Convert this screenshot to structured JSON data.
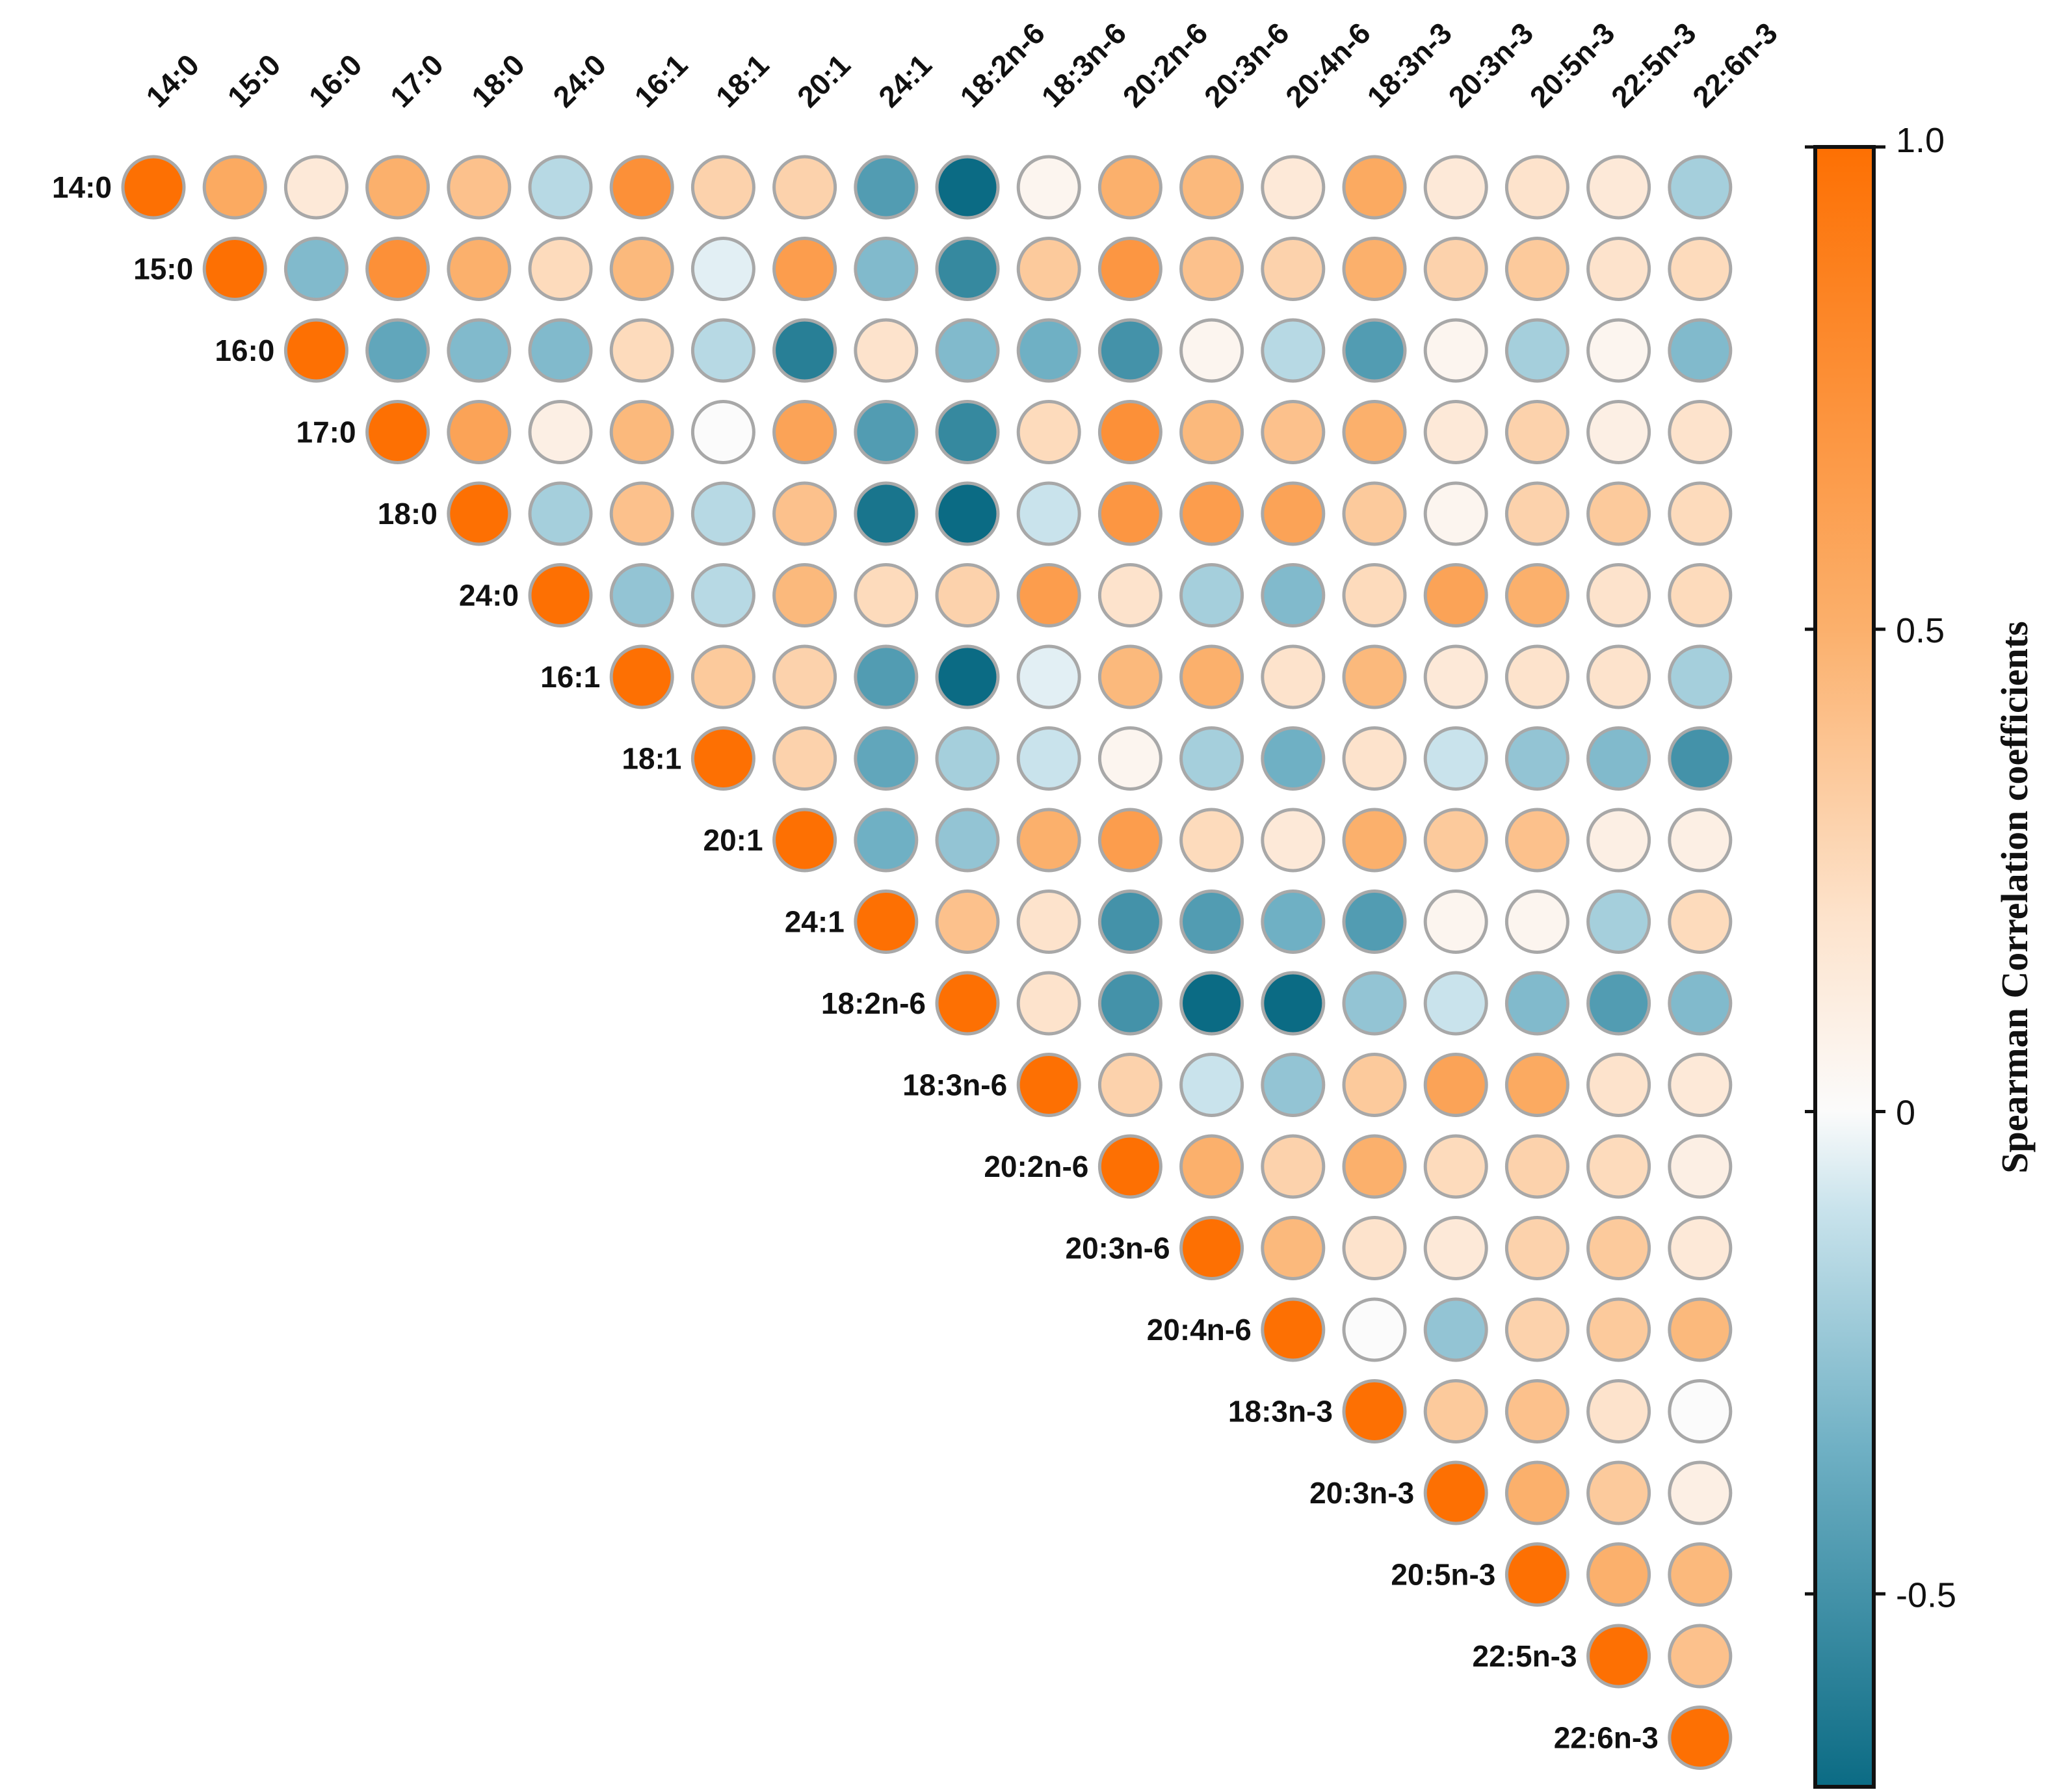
{
  "chart_data": {
    "type": "heatmap",
    "subtype": "upper-triangle correlation circles",
    "labels": [
      "14:0",
      "15:0",
      "16:0",
      "17:0",
      "18:0",
      "24:0",
      "16:1",
      "18:1",
      "20:1",
      "24:1",
      "18:2n-6",
      "18:3n-6",
      "20:2n-6",
      "20:3n-6",
      "20:4n-6",
      "18:3n-3",
      "20:3n-3",
      "20:5n-3",
      "22:5n-3",
      "22:6n-3"
    ],
    "matrix": [
      [
        1.0,
        0.55,
        0.15,
        0.5,
        0.4,
        -0.15,
        0.75,
        0.3,
        0.3,
        -0.45,
        -0.75,
        0.05,
        0.5,
        0.45,
        0.15,
        0.55,
        0.15,
        0.2,
        0.15,
        -0.2
      ],
      [
        null,
        1.0,
        -0.3,
        0.75,
        0.5,
        0.25,
        0.45,
        -0.05,
        0.65,
        -0.3,
        -0.55,
        0.35,
        0.7,
        0.4,
        0.3,
        0.5,
        0.3,
        0.35,
        0.2,
        0.25
      ],
      [
        null,
        null,
        1.0,
        -0.4,
        -0.3,
        -0.3,
        0.25,
        -0.15,
        -0.6,
        0.2,
        -0.3,
        -0.35,
        -0.5,
        0.05,
        -0.15,
        -0.45,
        0.05,
        -0.2,
        0.05,
        -0.3
      ],
      [
        null,
        null,
        null,
        1.0,
        0.6,
        0.1,
        0.45,
        0.0,
        0.6,
        -0.45,
        -0.55,
        0.25,
        0.75,
        0.45,
        0.4,
        0.5,
        0.15,
        0.3,
        0.1,
        0.2
      ],
      [
        null,
        null,
        null,
        null,
        1.0,
        -0.2,
        0.4,
        -0.15,
        0.4,
        -0.65,
        -0.75,
        -0.1,
        0.7,
        0.65,
        0.6,
        0.35,
        0.05,
        0.3,
        0.35,
        0.25
      ],
      [
        null,
        null,
        null,
        null,
        null,
        1.0,
        -0.25,
        -0.15,
        0.45,
        0.25,
        0.3,
        0.65,
        0.2,
        -0.2,
        -0.3,
        0.25,
        0.6,
        0.5,
        0.2,
        0.25
      ],
      [
        null,
        null,
        null,
        null,
        null,
        null,
        1.0,
        0.35,
        0.3,
        -0.45,
        -0.8,
        -0.05,
        0.45,
        0.5,
        0.2,
        0.45,
        0.15,
        0.2,
        0.2,
        -0.2
      ],
      [
        null,
        null,
        null,
        null,
        null,
        null,
        null,
        1.0,
        0.3,
        -0.4,
        -0.2,
        -0.1,
        0.05,
        -0.2,
        -0.35,
        0.2,
        -0.1,
        -0.25,
        -0.3,
        -0.5
      ],
      [
        null,
        null,
        null,
        null,
        null,
        null,
        null,
        null,
        1.0,
        -0.35,
        -0.25,
        0.5,
        0.65,
        0.25,
        0.15,
        0.5,
        0.35,
        0.4,
        0.1,
        0.1
      ],
      [
        null,
        null,
        null,
        null,
        null,
        null,
        null,
        null,
        null,
        1.0,
        0.4,
        0.2,
        -0.5,
        -0.45,
        -0.35,
        -0.45,
        0.05,
        0.05,
        -0.2,
        0.25
      ],
      [
        null,
        null,
        null,
        null,
        null,
        null,
        null,
        null,
        null,
        null,
        1.0,
        0.2,
        -0.5,
        -0.8,
        -0.7,
        -0.25,
        -0.1,
        -0.3,
        -0.45,
        -0.3
      ],
      [
        null,
        null,
        null,
        null,
        null,
        null,
        null,
        null,
        null,
        null,
        null,
        1.0,
        0.3,
        -0.1,
        -0.25,
        0.35,
        0.6,
        0.55,
        0.2,
        0.15
      ],
      [
        null,
        null,
        null,
        null,
        null,
        null,
        null,
        null,
        null,
        null,
        null,
        null,
        1.0,
        0.5,
        0.3,
        0.5,
        0.25,
        0.3,
        0.25,
        0.1
      ],
      [
        null,
        null,
        null,
        null,
        null,
        null,
        null,
        null,
        null,
        null,
        null,
        null,
        null,
        1.0,
        0.45,
        0.2,
        0.15,
        0.3,
        0.35,
        0.15
      ],
      [
        null,
        null,
        null,
        null,
        null,
        null,
        null,
        null,
        null,
        null,
        null,
        null,
        null,
        null,
        1.0,
        0.0,
        -0.25,
        0.3,
        0.35,
        0.45
      ],
      [
        null,
        null,
        null,
        null,
        null,
        null,
        null,
        null,
        null,
        null,
        null,
        null,
        null,
        null,
        null,
        1.0,
        0.35,
        0.4,
        0.2,
        0.0
      ],
      [
        null,
        null,
        null,
        null,
        null,
        null,
        null,
        null,
        null,
        null,
        null,
        null,
        null,
        null,
        null,
        null,
        1.0,
        0.5,
        0.35,
        0.1
      ],
      [
        null,
        null,
        null,
        null,
        null,
        null,
        null,
        null,
        null,
        null,
        null,
        null,
        null,
        null,
        null,
        null,
        null,
        1.0,
        0.5,
        0.45
      ],
      [
        null,
        null,
        null,
        null,
        null,
        null,
        null,
        null,
        null,
        null,
        null,
        null,
        null,
        null,
        null,
        null,
        null,
        null,
        1.0,
        0.4
      ],
      [
        null,
        null,
        null,
        null,
        null,
        null,
        null,
        null,
        null,
        null,
        null,
        null,
        null,
        null,
        null,
        null,
        null,
        null,
        null,
        1.0
      ]
    ],
    "colorbar": {
      "title": "Spearman Correlation coefficients",
      "range": [
        -0.7,
        1.0
      ],
      "ticks": [
        1.0,
        0.5,
        0,
        -0.5
      ],
      "tick_labels": [
        "1.0",
        "0.5",
        "0",
        "-0.5"
      ],
      "stops": [
        {
          "value": -0.7,
          "color": "#0b6b84"
        },
        {
          "value": -0.35,
          "color": "#6fb0c4"
        },
        {
          "value": -0.1,
          "color": "#c9e3ec"
        },
        {
          "value": 0.0,
          "color": "#fbfbfb"
        },
        {
          "value": 0.2,
          "color": "#fde3cc"
        },
        {
          "value": 0.5,
          "color": "#fbb06c"
        },
        {
          "value": 1.0,
          "color": "#fd7003"
        }
      ]
    },
    "circle_stroke_color": "#a8a8a8",
    "legend_position": "right"
  }
}
